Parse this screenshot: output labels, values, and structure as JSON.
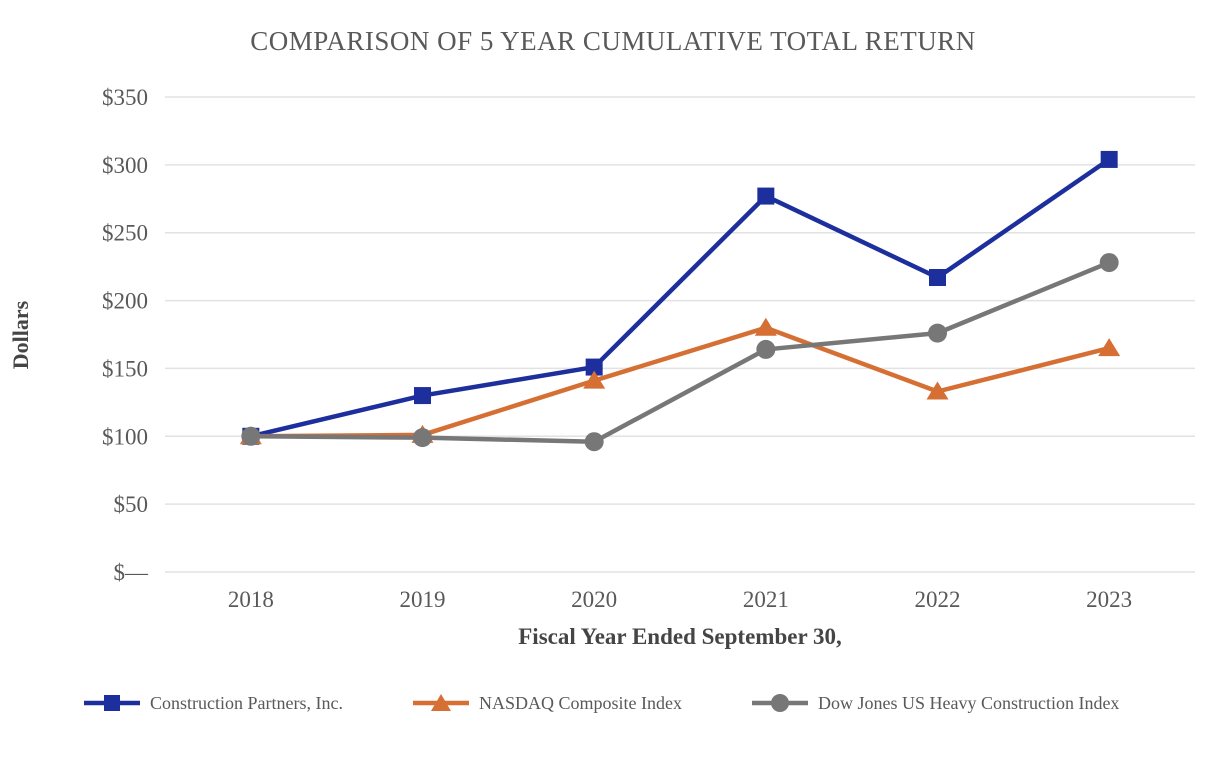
{
  "chart_data": {
    "type": "line",
    "title": "COMPARISON OF 5 YEAR CUMULATIVE TOTAL RETURN",
    "xlabel": "Fiscal Year Ended September 30,",
    "ylabel": "Dollars",
    "categories": [
      "2018",
      "2019",
      "2020",
      "2021",
      "2022",
      "2023"
    ],
    "series": [
      {
        "name": "Construction Partners, Inc.",
        "color": "#1c2f9c",
        "marker": "square",
        "values": [
          100,
          130,
          151,
          277,
          217,
          304
        ]
      },
      {
        "name": "NASDAQ Composite Index",
        "color": "#d56f34",
        "marker": "triangle",
        "values": [
          100,
          101,
          141,
          180,
          133,
          165
        ]
      },
      {
        "name": "Dow Jones US Heavy Construction Index",
        "color": "#777777",
        "marker": "circle",
        "values": [
          100,
          99,
          96,
          164,
          176,
          228
        ]
      }
    ],
    "y_axis": {
      "min": 0,
      "max": 350,
      "tick_step": 50,
      "ticks": [
        {
          "value": 350,
          "label": "$350"
        },
        {
          "value": 300,
          "label": "$300"
        },
        {
          "value": 250,
          "label": "$250"
        },
        {
          "value": 200,
          "label": "$200"
        },
        {
          "value": 150,
          "label": "$150"
        },
        {
          "value": 100,
          "label": "$100"
        },
        {
          "value": 50,
          "label": "$50"
        },
        {
          "value": 0,
          "label": "$—"
        }
      ]
    },
    "grid": true,
    "legend_position": "bottom",
    "colors": {
      "gridline": "#e2e2e2",
      "tick_text": "#595959",
      "axis_title_text": "#454545",
      "title_text": "#595959"
    }
  }
}
